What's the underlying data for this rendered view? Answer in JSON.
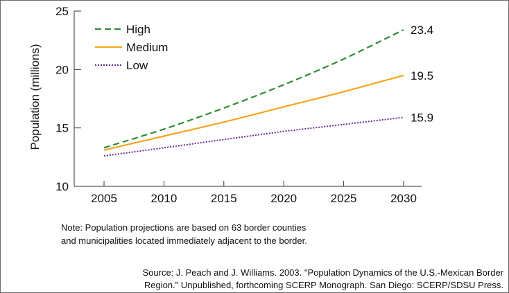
{
  "chart_data": {
    "type": "line",
    "title": "",
    "xlabel": "",
    "ylabel": "Population (millions)",
    "x": [
      2005,
      2010,
      2015,
      2020,
      2025,
      2030
    ],
    "xlim": [
      2005,
      2030
    ],
    "ylim": [
      10,
      25
    ],
    "yticks": [
      10,
      15,
      20,
      25
    ],
    "grid": false,
    "legend": "top-left",
    "series": [
      {
        "name": "High",
        "values": [
          13.3,
          14.9,
          16.7,
          18.7,
          20.9,
          23.4
        ],
        "color": "#2e8b32",
        "dash": "dashed",
        "end_label": "23.4"
      },
      {
        "name": "Medium",
        "values": [
          13.1,
          14.3,
          15.5,
          16.8,
          18.1,
          19.5
        ],
        "color": "#f5a51c",
        "dash": "solid",
        "end_label": "19.5"
      },
      {
        "name": "Low",
        "values": [
          12.6,
          13.3,
          14.0,
          14.7,
          15.3,
          15.9
        ],
        "color": "#6a2c91",
        "dash": "dotted",
        "end_label": "15.9"
      }
    ]
  },
  "note": {
    "line1": "Note: Population projections are based on 63 border counties",
    "line2": "and municipalities located immediately adjacent to the border."
  },
  "source": {
    "line1": "Source:  J. Peach and J. Williams. 2003. \"Population Dynamics of the U.S.-Mexican Border",
    "line2": "Region.\" Unpublished, forthcoming SCERP Monograph. San Diego: SCERP/SDSU Press."
  }
}
